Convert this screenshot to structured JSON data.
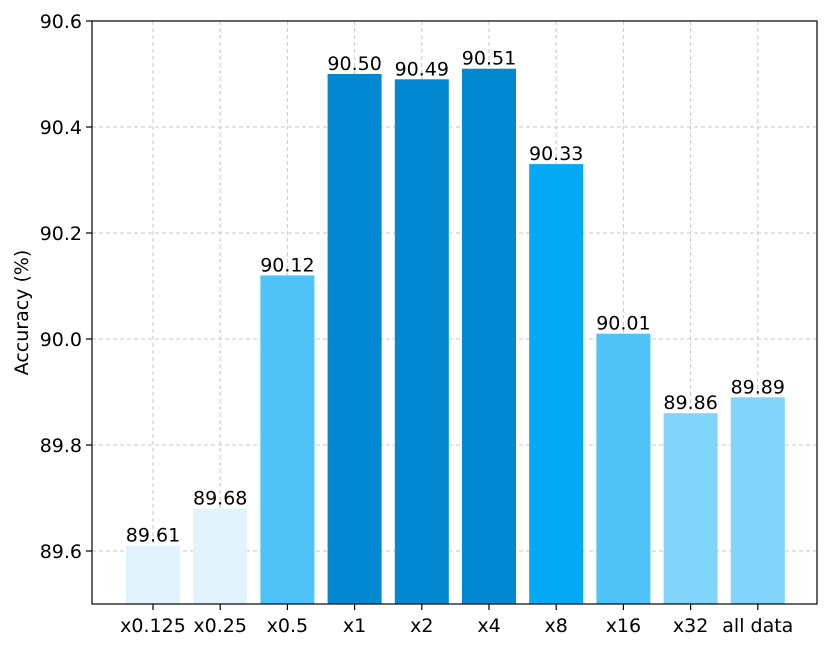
{
  "chart_data": {
    "type": "bar",
    "title": "",
    "xlabel": "",
    "ylabel": "Accuracy (%)",
    "categories": [
      "x0.125",
      "x0.25",
      "x0.5",
      "x1",
      "x2",
      "x4",
      "x8",
      "x16",
      "x32",
      "all data"
    ],
    "values": [
      89.61,
      89.68,
      90.12,
      90.5,
      90.49,
      90.51,
      90.33,
      90.01,
      89.86,
      89.89
    ],
    "value_labels": [
      "89.61",
      "89.68",
      "90.12",
      "90.50",
      "90.49",
      "90.51",
      "90.33",
      "90.01",
      "89.86",
      "89.89"
    ],
    "bar_colors": [
      "#e1f4fd",
      "#e1f4fd",
      "#4fc3f7",
      "#0288d1",
      "#0288d1",
      "#0288d1",
      "#03a9f4",
      "#4fc3f7",
      "#81d4fa",
      "#81d4fa"
    ],
    "ylim": [
      89.5,
      90.6
    ],
    "yticks": [
      89.6,
      89.8,
      90.0,
      90.2,
      90.4,
      90.6
    ],
    "ytick_labels": [
      "89.6",
      "89.8",
      "90.0",
      "90.2",
      "90.4",
      "90.6"
    ],
    "grid": true,
    "legend": "none"
  }
}
